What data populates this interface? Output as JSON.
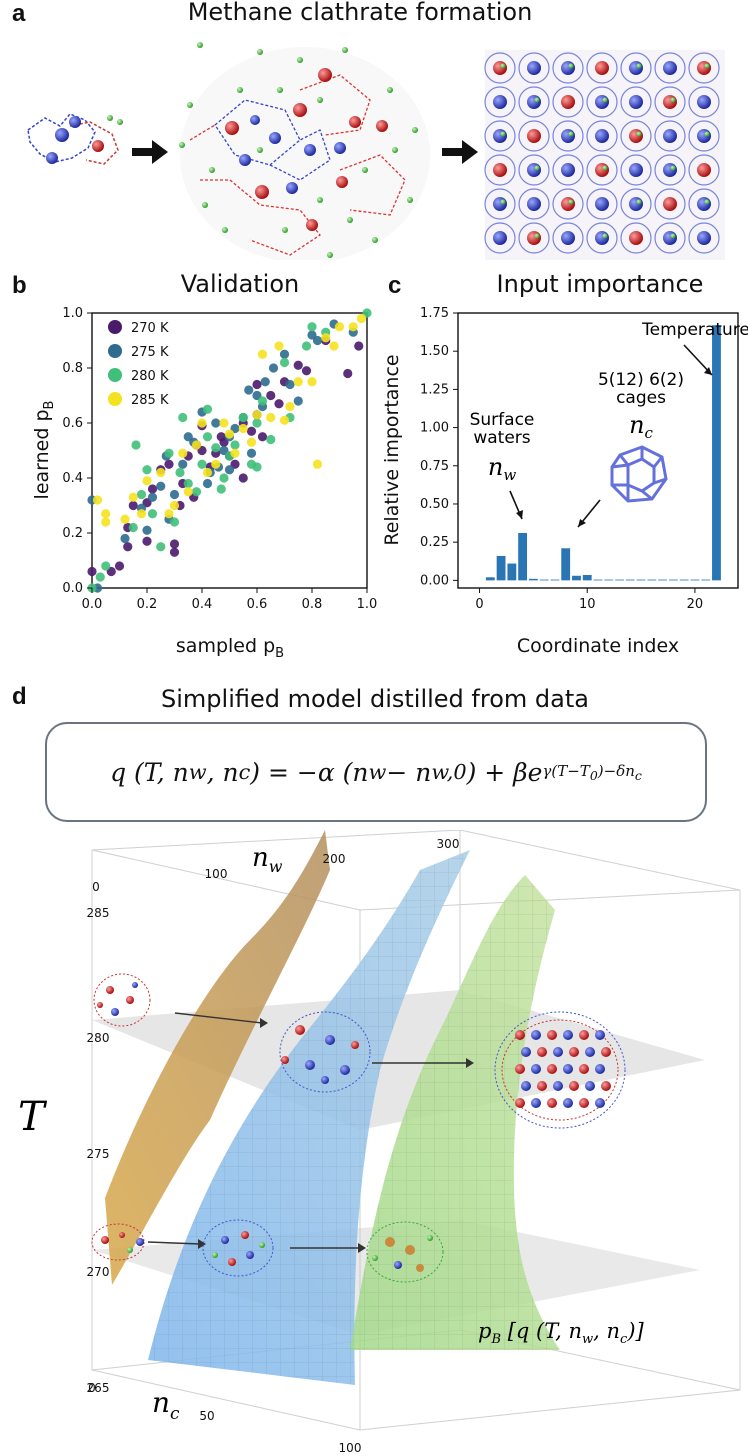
{
  "panel_a": {
    "label": "a",
    "title": "Methane clathrate formation"
  },
  "panel_b": {
    "label": "b",
    "title": "Validation"
  },
  "panel_c": {
    "label": "c",
    "title": "Input importance",
    "annotations": {
      "temperature": "Temperature",
      "cages_line1": "5(12) 6(2)",
      "cages_line2": "cages",
      "cages_var": "n",
      "cages_sub": "c",
      "surface_line1": "Surface",
      "surface_line2": "waters",
      "surface_var": "n",
      "surface_sub": "w"
    }
  },
  "panel_d": {
    "label": "d",
    "title": "Simplified model distilled from data",
    "equation": "q (T, n_w, n_c) = −α (n_w − n_w,0) + β e^{γ(T−T0)−δ n_c}",
    "eq_lhs": "q (T, n",
    "eq_w1": "w",
    "eq_mid": ", n",
    "eq_c1": "c",
    "eq_rhs1": ") = −α (n",
    "eq_w2": "w",
    "eq_minus": " − n",
    "eq_w0": "w,0",
    "eq_rhs2": ") + βe",
    "eq_exp": "γ(T−T",
    "eq_exp0": "0",
    "eq_exp_end": ")−δn",
    "eq_exp_c": "c",
    "axis_nw": "n",
    "axis_nw_sub": "w",
    "axis_nc": "n",
    "axis_nc_sub": "c",
    "axis_T": "T",
    "pb_label": "p",
    "pb_sub": "B",
    "pb_rest": " [q (T, n",
    "pb_w": "w",
    "pb_mid": ", n",
    "pb_c": "c",
    "pb_end": ")]",
    "nw_ticks": [
      "100",
      "200",
      "300"
    ],
    "nc_ticks": [
      "0",
      "50",
      "100"
    ],
    "T_ticks": [
      "285",
      "280",
      "275",
      "270",
      "265"
    ],
    "zero_top": "0"
  },
  "chart_data": [
    {
      "type": "scatter",
      "title": "Validation",
      "xlabel": "sampled p",
      "xlabel_sub": "B",
      "ylabel": "learned p",
      "ylabel_sub": "B",
      "xlim": [
        0,
        1
      ],
      "ylim": [
        0,
        1
      ],
      "x_ticks": [
        "0.0",
        "0.2",
        "0.4",
        "0.6",
        "0.8",
        "1.0"
      ],
      "y_ticks": [
        "0.0",
        "0.2",
        "0.4",
        "0.6",
        "0.8",
        "1.0"
      ],
      "legend_position": "top-left",
      "series": [
        {
          "name": "270 K",
          "color": "#4a1a6b",
          "points": [
            [
              0.0,
              0.06
            ],
            [
              0.07,
              0.06
            ],
            [
              0.1,
              0.08
            ],
            [
              0.13,
              0.22
            ],
            [
              0.13,
              0.15
            ],
            [
              0.15,
              0.3
            ],
            [
              0.2,
              0.31
            ],
            [
              0.22,
              0.36
            ],
            [
              0.25,
              0.43
            ],
            [
              0.3,
              0.16
            ],
            [
              0.3,
              0.13
            ],
            [
              0.32,
              0.3
            ],
            [
              0.33,
              0.38
            ],
            [
              0.35,
              0.48
            ],
            [
              0.38,
              0.52
            ],
            [
              0.4,
              0.59
            ],
            [
              0.43,
              0.44
            ],
            [
              0.45,
              0.49
            ],
            [
              0.48,
              0.53
            ],
            [
              0.5,
              0.48
            ],
            [
              0.52,
              0.45
            ],
            [
              0.55,
              0.4
            ],
            [
              0.58,
              0.57
            ],
            [
              0.6,
              0.63
            ],
            [
              0.62,
              0.55
            ],
            [
              0.65,
              0.7
            ],
            [
              0.7,
              0.75
            ],
            [
              0.75,
              0.81
            ],
            [
              0.78,
              0.79
            ],
            [
              0.85,
              0.9
            ],
            [
              0.93,
              0.78
            ],
            [
              0.97,
              0.88
            ],
            [
              0.2,
              0.17
            ],
            [
              0.37,
              0.33
            ],
            [
              0.47,
              0.55
            ],
            [
              0.68,
              0.67
            ],
            [
              0.55,
              0.6
            ],
            [
              0.28,
              0.45
            ],
            [
              0.6,
              0.74
            ],
            [
              0.4,
              0.5
            ]
          ]
        },
        {
          "name": "275 K",
          "color": "#2e6b8f",
          "points": [
            [
              0.0,
              0.32
            ],
            [
              0.02,
              0.0
            ],
            [
              0.12,
              0.18
            ],
            [
              0.18,
              0.29
            ],
            [
              0.2,
              0.21
            ],
            [
              0.22,
              0.33
            ],
            [
              0.25,
              0.37
            ],
            [
              0.28,
              0.25
            ],
            [
              0.3,
              0.34
            ],
            [
              0.33,
              0.45
            ],
            [
              0.35,
              0.55
            ],
            [
              0.37,
              0.53
            ],
            [
              0.4,
              0.64
            ],
            [
              0.43,
              0.42
            ],
            [
              0.45,
              0.6
            ],
            [
              0.48,
              0.5
            ],
            [
              0.5,
              0.55
            ],
            [
              0.52,
              0.58
            ],
            [
              0.55,
              0.62
            ],
            [
              0.58,
              0.49
            ],
            [
              0.6,
              0.7
            ],
            [
              0.63,
              0.75
            ],
            [
              0.66,
              0.8
            ],
            [
              0.7,
              0.85
            ],
            [
              0.72,
              0.74
            ],
            [
              0.75,
              0.68
            ],
            [
              0.8,
              0.92
            ],
            [
              0.82,
              0.9
            ],
            [
              0.88,
              0.96
            ],
            [
              0.95,
              0.93
            ],
            [
              0.27,
              0.48
            ],
            [
              0.5,
              0.43
            ],
            [
              0.42,
              0.38
            ],
            [
              0.62,
              0.66
            ],
            [
              0.57,
              0.72
            ],
            [
              0.46,
              0.44
            ]
          ]
        },
        {
          "name": "280 K",
          "color": "#3fbf7a",
          "points": [
            [
              0.0,
              0.0
            ],
            [
              0.03,
              0.04
            ],
            [
              0.05,
              0.08
            ],
            [
              0.15,
              0.22
            ],
            [
              0.18,
              0.34
            ],
            [
              0.2,
              0.43
            ],
            [
              0.22,
              0.27
            ],
            [
              0.25,
              0.15
            ],
            [
              0.28,
              0.49
            ],
            [
              0.3,
              0.24
            ],
            [
              0.32,
              0.42
            ],
            [
              0.35,
              0.38
            ],
            [
              0.38,
              0.35
            ],
            [
              0.4,
              0.45
            ],
            [
              0.42,
              0.55
            ],
            [
              0.45,
              0.51
            ],
            [
              0.48,
              0.4
            ],
            [
              0.5,
              0.48
            ],
            [
              0.52,
              0.52
            ],
            [
              0.55,
              0.62
            ],
            [
              0.58,
              0.45
            ],
            [
              0.6,
              0.44
            ],
            [
              0.62,
              0.68
            ],
            [
              0.65,
              0.54
            ],
            [
              0.7,
              0.82
            ],
            [
              0.72,
              0.62
            ],
            [
              0.78,
              0.88
            ],
            [
              0.8,
              0.95
            ],
            [
              0.85,
              0.93
            ],
            [
              1.0,
              1.0
            ],
            [
              0.33,
              0.62
            ],
            [
              0.42,
              0.65
            ],
            [
              0.6,
              0.6
            ],
            [
              0.16,
              0.52
            ],
            [
              0.47,
              0.36
            ]
          ]
        },
        {
          "name": "285 K",
          "color": "#f5e21e",
          "points": [
            [
              0.05,
              0.27
            ],
            [
              0.05,
              0.24
            ],
            [
              0.12,
              0.25
            ],
            [
              0.15,
              0.33
            ],
            [
              0.18,
              0.27
            ],
            [
              0.2,
              0.39
            ],
            [
              0.25,
              0.42
            ],
            [
              0.28,
              0.27
            ],
            [
              0.3,
              0.3
            ],
            [
              0.33,
              0.49
            ],
            [
              0.38,
              0.52
            ],
            [
              0.4,
              0.6
            ],
            [
              0.45,
              0.45
            ],
            [
              0.48,
              0.6
            ],
            [
              0.5,
              0.56
            ],
            [
              0.52,
              0.49
            ],
            [
              0.55,
              0.58
            ],
            [
              0.58,
              0.53
            ],
            [
              0.6,
              0.63
            ],
            [
              0.62,
              0.85
            ],
            [
              0.65,
              0.62
            ],
            [
              0.68,
              0.88
            ],
            [
              0.7,
              0.61
            ],
            [
              0.75,
              0.75
            ],
            [
              0.8,
              0.75
            ],
            [
              0.82,
              0.45
            ],
            [
              0.85,
              0.91
            ],
            [
              0.9,
              0.95
            ],
            [
              0.95,
              0.95
            ],
            [
              0.98,
              0.98
            ],
            [
              0.35,
              0.35
            ],
            [
              0.72,
              0.66
            ],
            [
              0.88,
              0.88
            ],
            [
              0.42,
              0.42
            ],
            [
              0.02,
              0.32
            ]
          ]
        }
      ]
    },
    {
      "type": "bar",
      "title": "Input importance",
      "xlabel": "Coordinate index",
      "ylabel": "Relative importance",
      "xlim": [
        -2,
        24
      ],
      "ylim": [
        -0.05,
        1.75
      ],
      "x_ticks": [
        0,
        10,
        20
      ],
      "y_ticks": [
        "0.00",
        "0.25",
        "0.50",
        "0.75",
        "1.00",
        "1.25",
        "1.50",
        "1.75"
      ],
      "color": "#2a75b3",
      "categories": [
        1,
        2,
        3,
        4,
        5,
        6,
        7,
        8,
        9,
        10,
        11,
        12,
        13,
        14,
        15,
        16,
        17,
        18,
        19,
        20,
        21,
        22
      ],
      "values": [
        0.02,
        0.16,
        0.11,
        0.31,
        0.01,
        0.005,
        0.005,
        0.21,
        0.03,
        0.035,
        0.005,
        0.005,
        0.005,
        0.005,
        0.005,
        0.005,
        0.005,
        0.005,
        0.005,
        0.005,
        0.005,
        1.67
      ]
    }
  ]
}
